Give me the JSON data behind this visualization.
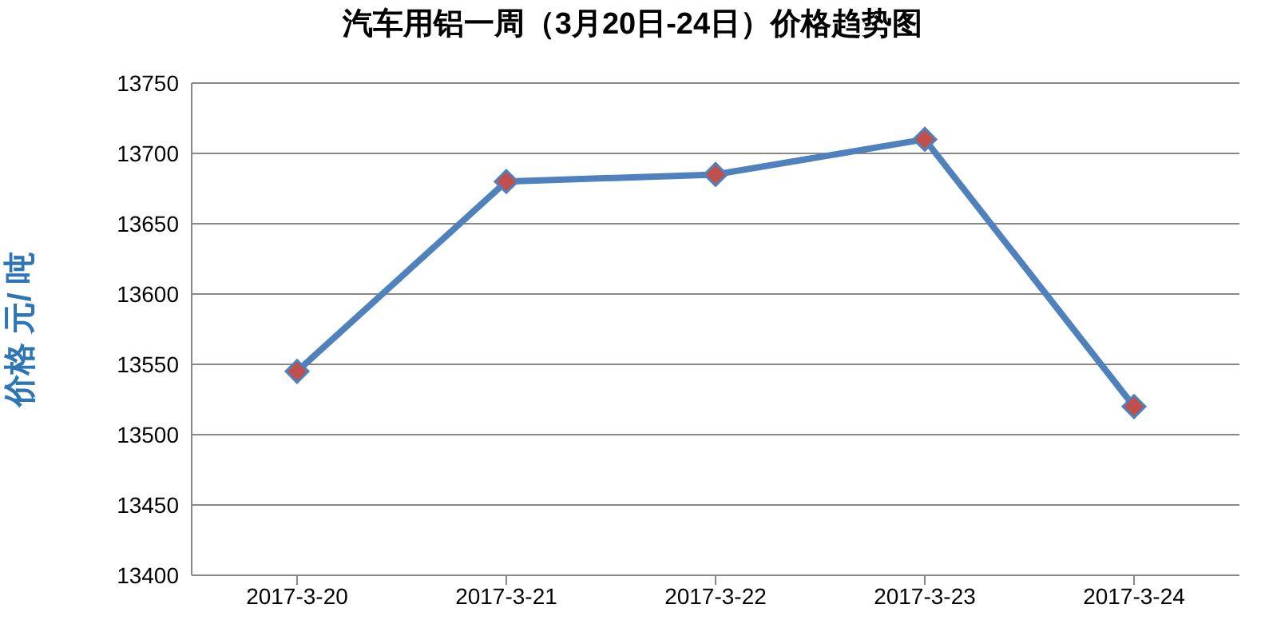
{
  "chart_data": {
    "type": "line",
    "title": "汽车用铝一周（3月20日-24日）价格趋势图",
    "ylabel": "价格 元/ 吨",
    "categories": [
      "2017-3-20",
      "2017-3-21",
      "2017-3-22",
      "2017-3-23",
      "2017-3-24"
    ],
    "series": [
      {
        "color": "#4f81bd",
        "values": [
          13545,
          13680,
          13685,
          13710,
          13520
        ]
      }
    ],
    "ylim": [
      13400,
      13750
    ],
    "yticks": [
      13400,
      13450,
      13500,
      13550,
      13600,
      13650,
      13700,
      13750
    ],
    "grid": "y",
    "legend": false,
    "marker": "diamond",
    "line_style": "solid"
  }
}
